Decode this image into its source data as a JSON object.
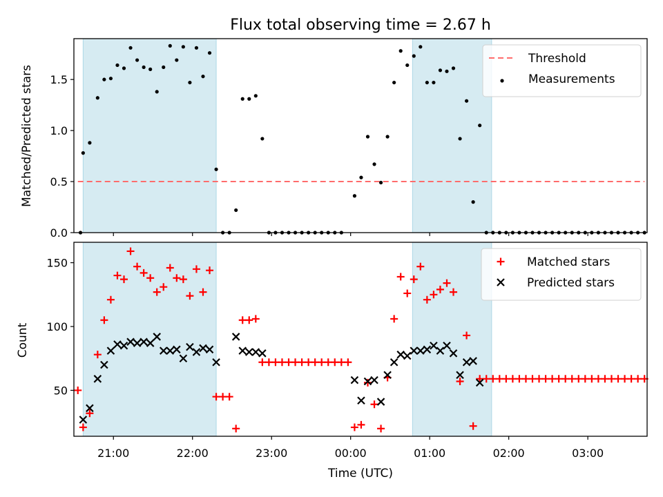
{
  "colors": {
    "shade": "#add8e6",
    "threshold": "#ff6b6b",
    "measurement": "#000000",
    "matched": "#ff0000",
    "predicted": "#000000"
  },
  "chart_data": [
    {
      "type": "scatter",
      "title": "Flux total observing time = 2.67 h",
      "xlabel": "",
      "ylabel": "Matched/Predicted stars",
      "x_axis": "time (UTC, evening to next morning)",
      "xlim": [
        "20:30",
        "03:45"
      ],
      "ylim": [
        0,
        1.9
      ],
      "yticks": [
        0.0,
        0.5,
        1.0,
        1.5
      ],
      "ytick_labels": [
        "0.0",
        "0.5",
        "1.0",
        "1.5"
      ],
      "grid": false,
      "legend_position": "top-right",
      "shaded_intervals": [
        [
          "20:37",
          "22:18"
        ],
        [
          "00:47",
          "01:47"
        ]
      ],
      "threshold": {
        "name": "Threshold",
        "value": 0.5,
        "x_range": [
          "20:33",
          "03:43"
        ],
        "style": "dashed"
      },
      "series": [
        {
          "name": "Measurements",
          "marker": "dot",
          "points": [
            [
              "20:35",
              0.0
            ],
            [
              "20:37",
              0.78
            ],
            [
              "20:42",
              0.88
            ],
            [
              "20:48",
              1.32
            ],
            [
              "20:53",
              1.5
            ],
            [
              "20:58",
              1.51
            ],
            [
              "21:03",
              1.64
            ],
            [
              "21:08",
              1.61
            ],
            [
              "21:13",
              1.81
            ],
            [
              "21:18",
              1.69
            ],
            [
              "21:23",
              1.62
            ],
            [
              "21:28",
              1.6
            ],
            [
              "21:33",
              1.38
            ],
            [
              "21:38",
              1.62
            ],
            [
              "21:43",
              1.83
            ],
            [
              "21:48",
              1.69
            ],
            [
              "21:53",
              1.82
            ],
            [
              "21:58",
              1.47
            ],
            [
              "22:03",
              1.81
            ],
            [
              "22:08",
              1.53
            ],
            [
              "22:13",
              1.76
            ],
            [
              "22:18",
              0.62
            ],
            [
              "22:23",
              0.0
            ],
            [
              "22:28",
              0.0
            ],
            [
              "22:33",
              0.22
            ],
            [
              "22:38",
              1.31
            ],
            [
              "22:43",
              1.31
            ],
            [
              "22:48",
              1.34
            ],
            [
              "22:53",
              0.92
            ],
            [
              "22:58",
              0.0
            ],
            [
              "23:03",
              0.0
            ],
            [
              "23:08",
              0.0
            ],
            [
              "23:13",
              0.0
            ],
            [
              "23:18",
              0.0
            ],
            [
              "23:23",
              0.0
            ],
            [
              "23:28",
              0.0
            ],
            [
              "23:33",
              0.0
            ],
            [
              "23:38",
              0.0
            ],
            [
              "23:43",
              0.0
            ],
            [
              "23:48",
              0.0
            ],
            [
              "23:53",
              0.0
            ],
            [
              "00:03",
              0.36
            ],
            [
              "00:08",
              0.54
            ],
            [
              "00:13",
              0.94
            ],
            [
              "00:18",
              0.67
            ],
            [
              "00:23",
              0.49
            ],
            [
              "00:28",
              0.94
            ],
            [
              "00:33",
              1.47
            ],
            [
              "00:38",
              1.78
            ],
            [
              "00:43",
              1.64
            ],
            [
              "00:48",
              1.73
            ],
            [
              "00:53",
              1.82
            ],
            [
              "00:58",
              1.47
            ],
            [
              "01:03",
              1.47
            ],
            [
              "01:08",
              1.59
            ],
            [
              "01:13",
              1.58
            ],
            [
              "01:18",
              1.61
            ],
            [
              "01:23",
              0.92
            ],
            [
              "01:28",
              1.29
            ],
            [
              "01:33",
              0.3
            ],
            [
              "01:38",
              1.05
            ],
            [
              "01:43",
              0.0
            ],
            [
              "01:48",
              0.0
            ],
            [
              "01:53",
              0.0
            ],
            [
              "01:58",
              0.0
            ],
            [
              "02:03",
              0.0
            ],
            [
              "02:08",
              0.0
            ],
            [
              "02:13",
              0.0
            ],
            [
              "02:18",
              0.0
            ],
            [
              "02:23",
              0.0
            ],
            [
              "02:28",
              0.0
            ],
            [
              "02:33",
              0.0
            ],
            [
              "02:38",
              0.0
            ],
            [
              "02:43",
              0.0
            ],
            [
              "02:48",
              0.0
            ],
            [
              "02:53",
              0.0
            ],
            [
              "02:58",
              0.0
            ],
            [
              "03:03",
              0.0
            ],
            [
              "03:08",
              0.0
            ],
            [
              "03:13",
              0.0
            ],
            [
              "03:18",
              0.0
            ],
            [
              "03:23",
              0.0
            ],
            [
              "03:28",
              0.0
            ],
            [
              "03:33",
              0.0
            ],
            [
              "03:38",
              0.0
            ],
            [
              "03:43",
              0.0
            ]
          ]
        }
      ]
    },
    {
      "type": "scatter",
      "title": "",
      "xlabel": "Time (UTC)",
      "ylabel": "Count",
      "xlim": [
        "20:30",
        "03:45"
      ],
      "ylim": [
        14,
        166
      ],
      "xticks": [
        "21:00",
        "22:00",
        "23:00",
        "00:00",
        "01:00",
        "02:00",
        "03:00"
      ],
      "yticks": [
        50,
        100,
        150
      ],
      "ytick_labels": [
        "50",
        "100",
        "150"
      ],
      "grid": false,
      "legend_position": "top-right",
      "shaded_intervals": [
        [
          "20:37",
          "22:18"
        ],
        [
          "00:47",
          "01:47"
        ]
      ],
      "series": [
        {
          "name": "Matched stars",
          "marker": "plus",
          "points": [
            [
              "20:33",
              50
            ],
            [
              "20:37",
              21
            ],
            [
              "20:42",
              32
            ],
            [
              "20:48",
              78
            ],
            [
              "20:53",
              105
            ],
            [
              "20:58",
              121
            ],
            [
              "21:03",
              140
            ],
            [
              "21:08",
              137
            ],
            [
              "21:13",
              159
            ],
            [
              "21:18",
              147
            ],
            [
              "21:23",
              142
            ],
            [
              "21:28",
              138
            ],
            [
              "21:33",
              127
            ],
            [
              "21:38",
              131
            ],
            [
              "21:43",
              146
            ],
            [
              "21:48",
              138
            ],
            [
              "21:53",
              137
            ],
            [
              "21:58",
              124
            ],
            [
              "22:03",
              145
            ],
            [
              "22:08",
              127
            ],
            [
              "22:13",
              144
            ],
            [
              "22:18",
              45
            ],
            [
              "22:23",
              45
            ],
            [
              "22:28",
              45
            ],
            [
              "22:33",
              20
            ],
            [
              "22:38",
              105
            ],
            [
              "22:43",
              105
            ],
            [
              "22:48",
              106
            ],
            [
              "22:53",
              72
            ],
            [
              "22:58",
              72
            ],
            [
              "23:03",
              72
            ],
            [
              "23:08",
              72
            ],
            [
              "23:13",
              72
            ],
            [
              "23:18",
              72
            ],
            [
              "23:23",
              72
            ],
            [
              "23:28",
              72
            ],
            [
              "23:33",
              72
            ],
            [
              "23:38",
              72
            ],
            [
              "23:43",
              72
            ],
            [
              "23:48",
              72
            ],
            [
              "23:53",
              72
            ],
            [
              "23:58",
              72
            ],
            [
              "00:03",
              21
            ],
            [
              "00:08",
              23
            ],
            [
              "00:13",
              56
            ],
            [
              "00:18",
              39
            ],
            [
              "00:23",
              20
            ],
            [
              "00:28",
              60
            ],
            [
              "00:33",
              106
            ],
            [
              "00:38",
              139
            ],
            [
              "00:43",
              126
            ],
            [
              "00:48",
              137
            ],
            [
              "00:53",
              147
            ],
            [
              "00:58",
              121
            ],
            [
              "01:03",
              125
            ],
            [
              "01:08",
              129
            ],
            [
              "01:13",
              134
            ],
            [
              "01:18",
              127
            ],
            [
              "01:23",
              57
            ],
            [
              "01:28",
              93
            ],
            [
              "01:33",
              22
            ],
            [
              "01:38",
              59
            ],
            [
              "01:43",
              59
            ],
            [
              "01:48",
              59
            ],
            [
              "01:53",
              59
            ],
            [
              "01:58",
              59
            ],
            [
              "02:03",
              59
            ],
            [
              "02:08",
              59
            ],
            [
              "02:13",
              59
            ],
            [
              "02:18",
              59
            ],
            [
              "02:23",
              59
            ],
            [
              "02:28",
              59
            ],
            [
              "02:33",
              59
            ],
            [
              "02:38",
              59
            ],
            [
              "02:43",
              59
            ],
            [
              "02:48",
              59
            ],
            [
              "02:53",
              59
            ],
            [
              "02:58",
              59
            ],
            [
              "03:03",
              59
            ],
            [
              "03:08",
              59
            ],
            [
              "03:13",
              59
            ],
            [
              "03:18",
              59
            ],
            [
              "03:23",
              59
            ],
            [
              "03:28",
              59
            ],
            [
              "03:33",
              59
            ],
            [
              "03:38",
              59
            ],
            [
              "03:43",
              59
            ]
          ]
        },
        {
          "name": "Predicted stars",
          "marker": "x",
          "points": [
            [
              "20:37",
              27
            ],
            [
              "20:42",
              36
            ],
            [
              "20:48",
              59
            ],
            [
              "20:53",
              70
            ],
            [
              "20:58",
              81
            ],
            [
              "21:03",
              86
            ],
            [
              "21:08",
              85
            ],
            [
              "21:13",
              88
            ],
            [
              "21:18",
              87
            ],
            [
              "21:23",
              88
            ],
            [
              "21:28",
              87
            ],
            [
              "21:33",
              92
            ],
            [
              "21:38",
              81
            ],
            [
              "21:43",
              81
            ],
            [
              "21:48",
              82
            ],
            [
              "21:53",
              75
            ],
            [
              "21:58",
              84
            ],
            [
              "22:03",
              80
            ],
            [
              "22:08",
              83
            ],
            [
              "22:13",
              82
            ],
            [
              "22:18",
              72
            ],
            [
              "22:33",
              92
            ],
            [
              "22:38",
              81
            ],
            [
              "22:43",
              80
            ],
            [
              "22:48",
              80
            ],
            [
              "22:53",
              79
            ],
            [
              "00:03",
              58
            ],
            [
              "00:08",
              42
            ],
            [
              "00:13",
              57
            ],
            [
              "00:18",
              58
            ],
            [
              "00:23",
              41
            ],
            [
              "00:28",
              62
            ],
            [
              "00:33",
              72
            ],
            [
              "00:38",
              78
            ],
            [
              "00:43",
              77
            ],
            [
              "00:48",
              81
            ],
            [
              "00:53",
              81
            ],
            [
              "00:58",
              82
            ],
            [
              "01:03",
              85
            ],
            [
              "01:08",
              81
            ],
            [
              "01:13",
              85
            ],
            [
              "01:18",
              79
            ],
            [
              "01:23",
              62
            ],
            [
              "01:28",
              72
            ],
            [
              "01:33",
              73
            ],
            [
              "01:38",
              56
            ]
          ]
        }
      ]
    }
  ]
}
